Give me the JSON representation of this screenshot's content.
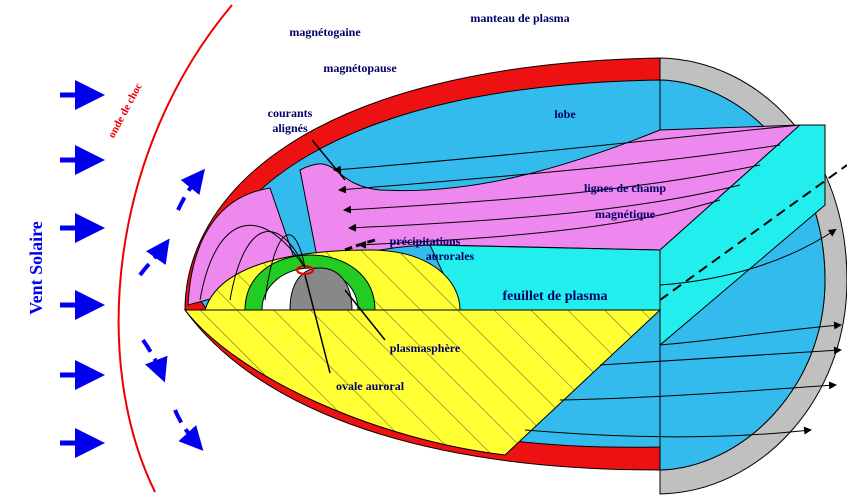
{
  "labels": {
    "vent_solaire": "Vent Solaire",
    "onde_de_choc": "onde de choc",
    "magnetogaine": "magnétogaine",
    "manteau": "manteau de plasma",
    "magnetopause": "magnétopause",
    "courants": [
      "courants",
      "alignés"
    ],
    "lobe": "lobe",
    "lignes": [
      "lignes de champ",
      "magnétique"
    ],
    "precipitations": [
      "précipitations",
      "aurorales"
    ],
    "feuillet": "feuillet de plasma",
    "plasmasphere": "plasmasphère",
    "ovale": "ovale auroral"
  }
}
